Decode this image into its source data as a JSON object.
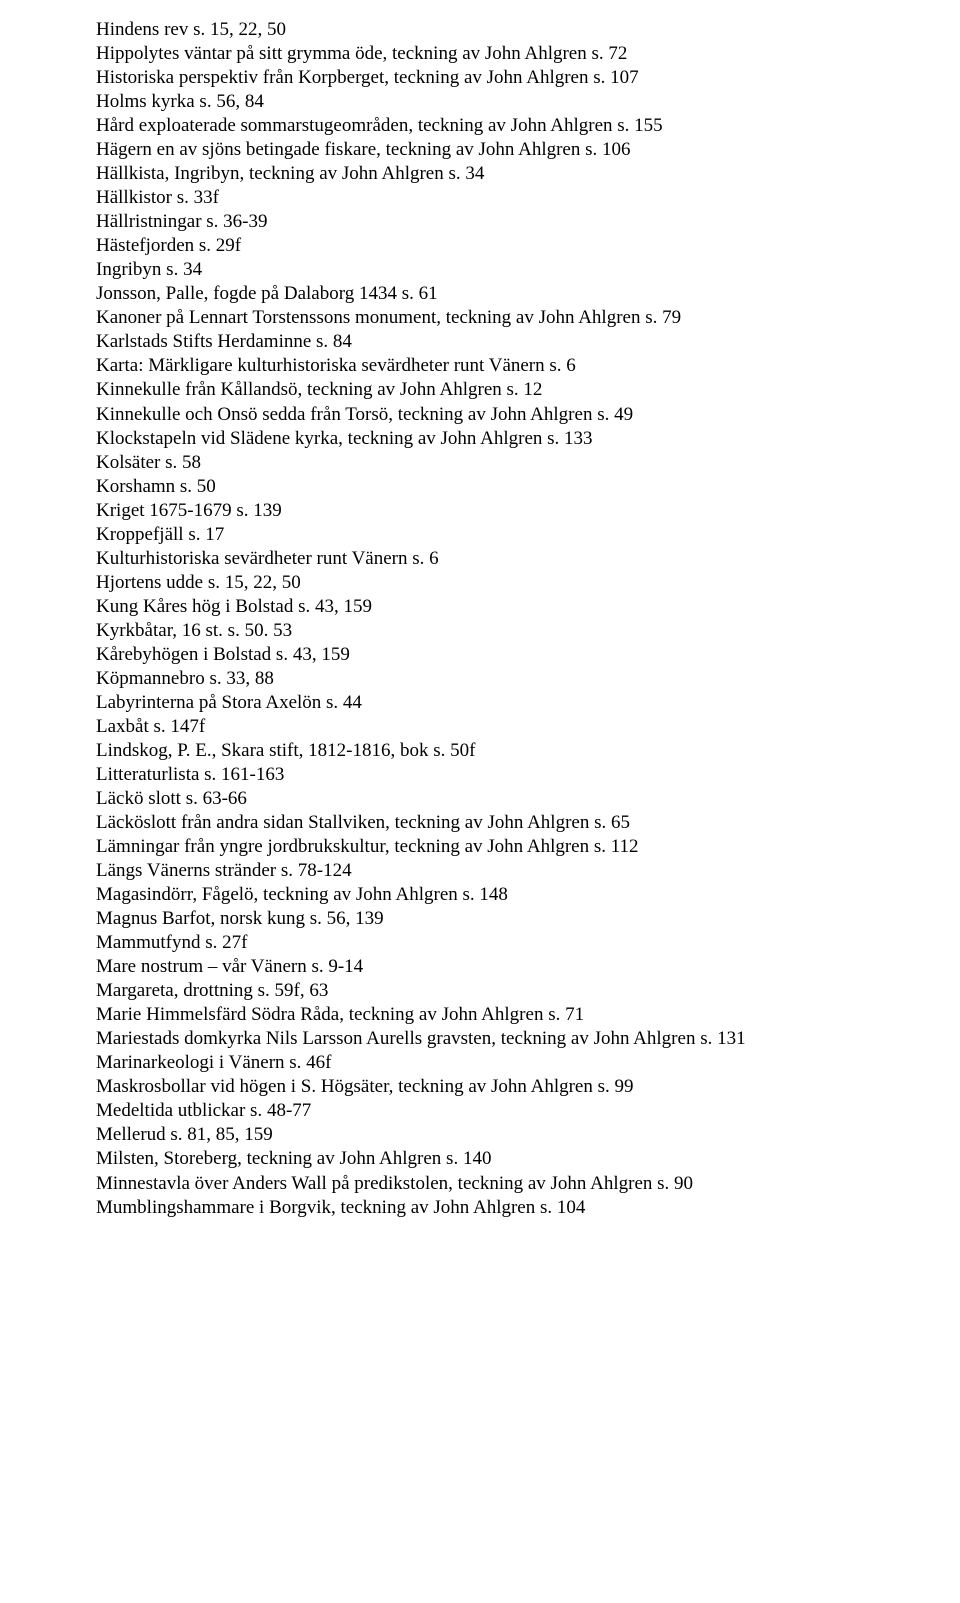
{
  "entries": [
    "Hindens rev s. 15, 22, 50",
    "Hippolytes väntar på sitt grymma öde, teckning av John Ahlgren s. 72",
    "Historiska perspektiv från Korpberget, teckning av John Ahlgren s. 107",
    "Holms kyrka s. 56, 84",
    "Hård exploaterade sommarstugeområden, teckning av John Ahlgren s. 155",
    "Hägern en av sjöns betingade fiskare, teckning av John Ahlgren s. 106",
    "Hällkista, Ingribyn, teckning av John Ahlgren s. 34",
    "Hällkistor s. 33f",
    "Hällristningar s. 36-39",
    "Hästefjorden s. 29f",
    "Ingribyn s. 34",
    "Jonsson, Palle, fogde på Dalaborg 1434 s. 61",
    "Kanoner på Lennart Torstenssons monument, teckning av John Ahlgren s. 79",
    "Karlstads Stifts Herdaminne s. 84",
    "Karta: Märkligare kulturhistoriska sevärdheter runt Vänern s. 6",
    "Kinnekulle från Kållandsö, teckning av John Ahlgren s. 12",
    "Kinnekulle och Onsö sedda från Torsö, teckning av John Ahlgren s. 49",
    "Klockstapeln vid Slädene kyrka, teckning av John Ahlgren s. 133",
    "Kolsäter s. 58",
    "Korshamn s. 50",
    "Kriget 1675-1679 s. 139",
    "Kroppefjäll s. 17",
    "Kulturhistoriska sevärdheter runt Vänern s. 6",
    "Hjortens udde s. 15, 22, 50",
    "Kung Kåres hög i Bolstad s. 43, 159",
    "Kyrkbåtar, 16 st. s. 50. 53",
    "Kårebyhögen i Bolstad s. 43, 159",
    "Köpmannebro s. 33, 88",
    "Labyrinterna på Stora Axelön s. 44",
    "Laxbåt s. 147f",
    "Lindskog, P. E., Skara stift, 1812-1816, bok s. 50f",
    "Litteraturlista s. 161-163",
    "Läckö slott s. 63-66",
    "Läcköslott från andra sidan Stallviken, teckning av John Ahlgren s. 65",
    "Lämningar från yngre jordbrukskultur, teckning av John Ahlgren s. 112",
    "Längs Vänerns stränder s. 78-124",
    "Magasindörr, Fågelö, teckning av John Ahlgren s. 148",
    "Magnus Barfot, norsk kung s. 56, 139",
    "Mammutfynd s. 27f",
    "Mare nostrum – vår Vänern s. 9-14",
    "Margareta, drottning s. 59f, 63",
    "Marie Himmelsfärd Södra Råda, teckning av John Ahlgren s. 71",
    "Mariestads domkyrka Nils Larsson Aurells gravsten, teckning av John Ahlgren s. 131",
    "Marinarkeologi i Vänern s. 46f",
    "Maskrosbollar vid högen i S. Högsäter, teckning av John Ahlgren s. 99",
    "Medeltida utblickar s. 48-77",
    "Mellerud s. 81, 85, 159",
    "Milsten, Storeberg, teckning av John Ahlgren s. 140",
    "Minnestavla över Anders Wall på predikstolen, teckning av John Ahlgren s. 90",
    "Mumblingshammare i Borgvik, teckning av John Ahlgren s. 104"
  ]
}
